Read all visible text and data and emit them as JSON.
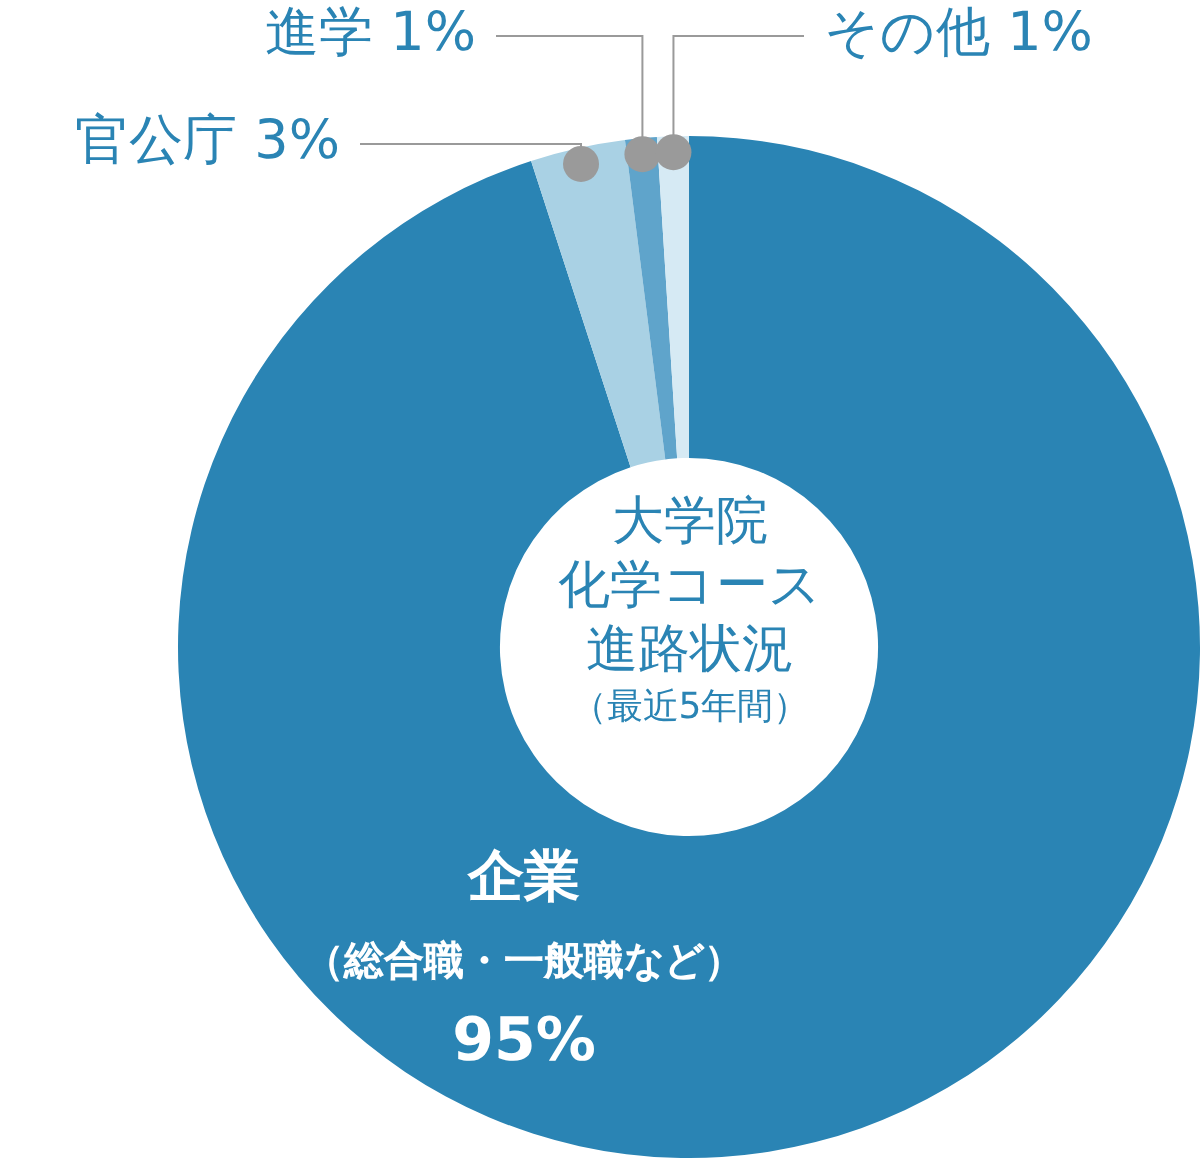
{
  "chart_data": {
    "type": "donut",
    "title": "大学院化学コース進路状況",
    "subtitle": "（最近5年間）",
    "categories": [
      "企業",
      "官公庁",
      "進学",
      "その他"
    ],
    "values": [
      95,
      3,
      1,
      1
    ],
    "colors": [
      "#2a84b4",
      "#a9d1e4",
      "#5fa4cb",
      "#d6eaf4"
    ],
    "value_labels": [
      "95%",
      "3%",
      "1%",
      "1%"
    ],
    "annotations": [
      "（総合職・一般職など）"
    ],
    "legend": false
  }
}
